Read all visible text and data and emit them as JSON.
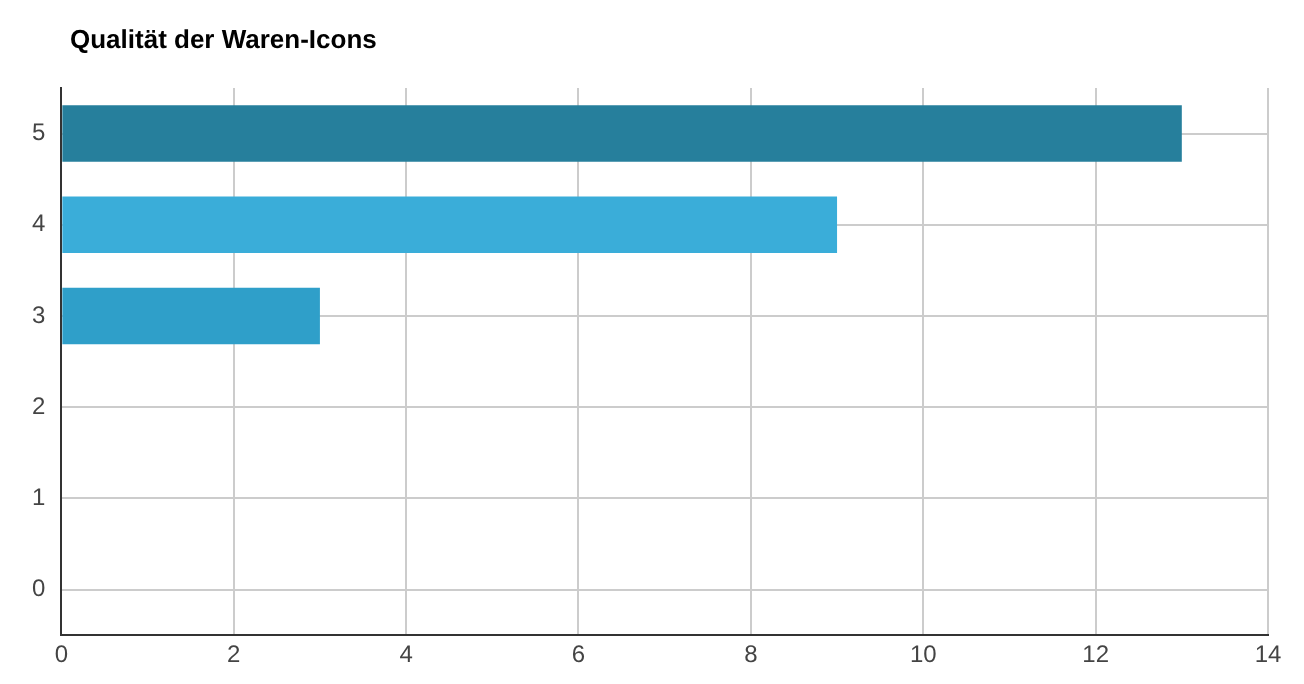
{
  "chart_data": {
    "type": "bar",
    "orientation": "horizontal",
    "title": "Qualität der Waren-Icons",
    "categories": [
      "5",
      "4",
      "3",
      "2",
      "1",
      "0"
    ],
    "values": [
      13,
      9,
      3,
      0,
      0,
      0
    ],
    "colors": [
      "#267f9c",
      "#3aadd9",
      "#2f9fc9",
      "#2f9fc9",
      "#2f9fc9",
      "#2f9fc9"
    ],
    "xlim": [
      0,
      14
    ],
    "xticks": [
      0,
      2,
      4,
      6,
      8,
      10,
      12,
      14
    ],
    "grid": true,
    "legend": false
  }
}
